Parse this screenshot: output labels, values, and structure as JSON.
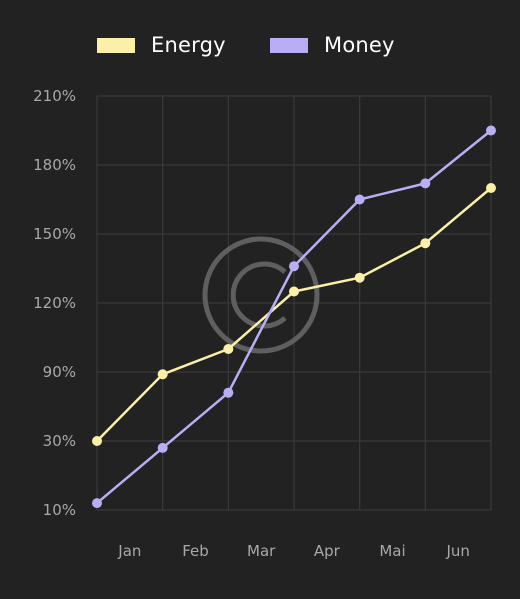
{
  "legend": {
    "items": [
      {
        "label": "Energy",
        "color": "#faf0a8"
      },
      {
        "label": "Money",
        "color": "#b9aef5"
      }
    ]
  },
  "watermark": {
    "symbol": "©",
    "color": "#6a6a6a"
  },
  "colors": {
    "background": "#222222",
    "grid": "#3a3a3a",
    "axis_text": "#a8a8a8"
  },
  "chart_data": {
    "type": "line",
    "title": "",
    "xlabel": "",
    "ylabel": "",
    "x": [
      0,
      1,
      2,
      3,
      4,
      5,
      6
    ],
    "categories": [
      "Jan",
      "Feb",
      "Mar",
      "Apr",
      "Mai",
      "Jun"
    ],
    "y_ticks": [
      "10%",
      "30%",
      "90%",
      "120%",
      "150%",
      "180%",
      "210%"
    ],
    "y_scale": "categorical-percent",
    "grid": true,
    "legend_position": "top",
    "series": [
      {
        "name": "Energy",
        "color": "#faf0a8",
        "values": [
          "30%",
          "88%",
          "100%",
          "125%",
          "131%",
          "146%",
          "170%"
        ]
      },
      {
        "name": "Money",
        "color": "#b9aef5",
        "values": [
          "12%",
          "28%",
          "72%",
          "136%",
          "165%",
          "172%",
          "195%"
        ]
      }
    ]
  }
}
